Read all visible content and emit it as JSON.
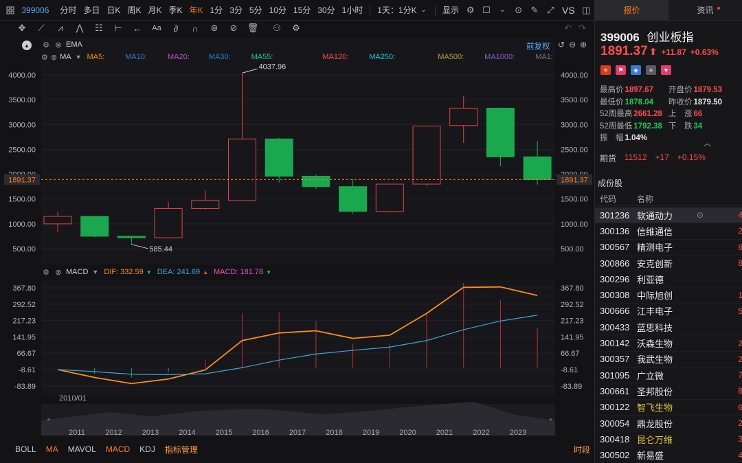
{
  "toolbar": {
    "symbol": "399006",
    "periods": [
      "分时",
      "多日",
      "日K",
      "周K",
      "月K",
      "季K",
      "年K",
      "1分",
      "3分",
      "5分",
      "10分",
      "15分",
      "30分",
      "1小时"
    ],
    "active_period": "年K",
    "multi_frame": "1天：1分K",
    "display_label": "显示",
    "vs_label": "VS"
  },
  "drawbar": {
    "icons": [
      "crosshair-icon",
      "line-tool-icon",
      "channel-tool-icon",
      "wave-tool-icon",
      "fib-tool-icon",
      "measure-tool-icon",
      "arrow-tool-icon",
      "text-tool-icon",
      "brush-tool-icon",
      "magnet-icon",
      "hide-drawing-icon",
      "delete-drawing-icon",
      "link-icon",
      "settings-icon"
    ]
  },
  "ema_row": {
    "label": "EMA"
  },
  "ma_row": {
    "label": "MA",
    "restore_label": "前复权",
    "items": [
      {
        "text": "MA5:",
        "color": "#ff8c00"
      },
      {
        "text": "MA10:",
        "color": "#2f7fd1"
      },
      {
        "text": "MA20:",
        "color": "#c14fc4"
      },
      {
        "text": "MA30:",
        "color": "#2f7fd1"
      },
      {
        "text": "MA55:",
        "color": "#21c98a"
      },
      {
        "text": "MA120:",
        "color": "#ff4d4d"
      },
      {
        "text": "MA250:",
        "color": "#21c7d6"
      },
      {
        "text": "MA500:",
        "color": "#b8a03a"
      },
      {
        "text": "MA1000:",
        "color": "#8a5ad1"
      },
      {
        "text": "MA1:",
        "color": "#777"
      }
    ]
  },
  "macd_row": {
    "label": "MACD",
    "dif": "DIF: 332.59",
    "dea": "DEA: 241.69",
    "macd": "MACD: 181.78",
    "dif_color": "#ff8c1a",
    "dea_color": "#38a8d8",
    "macd_color": "#e055c8"
  },
  "chart_data": [
    {
      "type": "candlestick",
      "title": "",
      "ylim": [
        170,
        4340
      ],
      "y_ticks": [
        "4000.00",
        "3500.00",
        "3000.00",
        "2500.00",
        "2000.00",
        "1500.00",
        "1000.00",
        "500.00"
      ],
      "current_price": "1891.37",
      "high_annotation": "4037.96",
      "low_annotation": "585.44",
      "candles": [
        {
          "year": 2010,
          "open": 1000,
          "high": 1240,
          "low": 830,
          "close": 1150
        },
        {
          "year": 2011,
          "open": 1150,
          "high": 1160,
          "low": 730,
          "close": 750
        },
        {
          "year": 2012,
          "open": 750,
          "high": 755,
          "low": 585.44,
          "close": 720
        },
        {
          "year": 2013,
          "open": 720,
          "high": 1440,
          "low": 720,
          "close": 1310
        },
        {
          "year": 2014,
          "open": 1310,
          "high": 1670,
          "low": 1280,
          "close": 1470
        },
        {
          "year": 2015,
          "open": 1470,
          "high": 4037.96,
          "low": 1470,
          "close": 2710
        },
        {
          "year": 2016,
          "open": 2710,
          "high": 2730,
          "low": 1830,
          "close": 1960
        },
        {
          "year": 2017,
          "open": 1960,
          "high": 1990,
          "low": 1700,
          "close": 1750
        },
        {
          "year": 2018,
          "open": 1750,
          "high": 1900,
          "low": 1200,
          "close": 1250
        },
        {
          "year": 2019,
          "open": 1250,
          "high": 1810,
          "low": 1230,
          "close": 1800
        },
        {
          "year": 2020,
          "open": 1800,
          "high": 2980,
          "low": 1770,
          "close": 2970
        },
        {
          "year": 2021,
          "open": 2980,
          "high": 3580,
          "low": 2630,
          "close": 3330
        },
        {
          "year": 2022,
          "open": 3330,
          "high": 3340,
          "low": 2160,
          "close": 2350
        },
        {
          "year": 2023,
          "open": 2350,
          "high": 2670,
          "low": 1790,
          "close": 1891.37
        }
      ]
    },
    {
      "type": "line",
      "title": "MACD",
      "ylim": [
        -105,
        395
      ],
      "y_ticks": [
        "367.80",
        "292.52",
        "217.23",
        "141.95",
        "66.67",
        "-8.61",
        "-83.89"
      ],
      "x_start_label": "2010/01",
      "series": [
        {
          "name": "DIF",
          "color": "#ff8c1a",
          "values": [
            -8.6,
            -45,
            -73,
            -52,
            -10,
            125,
            160,
            170,
            135,
            150,
            250,
            370,
            372,
            332.59
          ]
        },
        {
          "name": "DEA",
          "color": "#38a8d8",
          "values": [
            -8.6,
            -18,
            -30,
            -32,
            -28,
            0,
            35,
            63,
            80,
            95,
            125,
            175,
            215,
            241.69
          ]
        },
        {
          "name": "MACD",
          "color": "#c23a3a",
          "values": [
            0,
            -28,
            -45,
            -20,
            35,
            250,
            255,
            215,
            110,
            110,
            250,
            390,
            310,
            181.78
          ]
        }
      ]
    }
  ],
  "timeline": {
    "years": [
      "2011",
      "2012",
      "2013",
      "2014",
      "2015",
      "2016",
      "2017",
      "2018",
      "2019",
      "2020",
      "2021",
      "2022",
      "2023"
    ]
  },
  "bottombar": {
    "items": [
      "BOLL",
      "MA",
      "MAVOL",
      "MACD",
      "KDJ"
    ],
    "active": [
      "MA",
      "MACD"
    ],
    "mgmt_label": "指标管理",
    "timeshare_label": "时段"
  },
  "right_panel": {
    "tabs": [
      "报价",
      "资讯"
    ],
    "active_tab": "报价",
    "code": "399006",
    "name": "创业板指",
    "price": "1891.37",
    "change": "+11.87",
    "change_pct": "+0.63%",
    "stats": {
      "high_label": "最高价",
      "high": "1897.67",
      "open_label": "开盘价",
      "open": "1879.53",
      "low_label": "最低价",
      "low": "1878.04",
      "prev_label": "昨收价",
      "prev": "1879.50",
      "wk52_high_label": "52周最高",
      "wk52_high": "2661.28",
      "up_label": "上　涨",
      "up": "66",
      "wk52_low_label": "52周最低",
      "wk52_low": "1792.38",
      "down_label": "下　跌",
      "down": "34",
      "amp_label": "振　幅",
      "amp": "1.04%"
    },
    "futures": {
      "label": "期货",
      "value": "11512",
      "change": "+17",
      "pct": "+0.15%"
    },
    "constituents_title": "成份股",
    "col_code": "代码",
    "col_name": "名称",
    "constituents": [
      {
        "code": "301236",
        "name": "软通动力",
        "hl": false,
        "tail": "4"
      },
      {
        "code": "300136",
        "name": "信维通信",
        "hl": false,
        "tail": "2"
      },
      {
        "code": "300567",
        "name": "精测电子",
        "hl": false,
        "tail": "8"
      },
      {
        "code": "300866",
        "name": "安克创新",
        "hl": false,
        "tail": "8"
      },
      {
        "code": "300296",
        "name": "利亚德",
        "hl": false,
        "tail": ""
      },
      {
        "code": "300308",
        "name": "中际旭创",
        "hl": false,
        "tail": "1"
      },
      {
        "code": "300666",
        "name": "江丰电子",
        "hl": false,
        "tail": "5"
      },
      {
        "code": "300433",
        "name": "蓝思科技",
        "hl": false,
        "tail": ""
      },
      {
        "code": "300142",
        "name": "沃森生物",
        "hl": false,
        "tail": "2"
      },
      {
        "code": "300357",
        "name": "我武生物",
        "hl": false,
        "tail": "2"
      },
      {
        "code": "301095",
        "name": "广立微",
        "hl": false,
        "tail": "7"
      },
      {
        "code": "300661",
        "name": "圣邦股份",
        "hl": false,
        "tail": "8"
      },
      {
        "code": "300122",
        "name": "智飞生物",
        "hl": true,
        "tail": "6"
      },
      {
        "code": "300054",
        "name": "鼎龙股份",
        "hl": false,
        "tail": "2"
      },
      {
        "code": "300418",
        "name": "昆仑万维",
        "hl": true,
        "tail": "3"
      },
      {
        "code": "300502",
        "name": "新易盛",
        "hl": false,
        "tail": "4"
      }
    ]
  }
}
